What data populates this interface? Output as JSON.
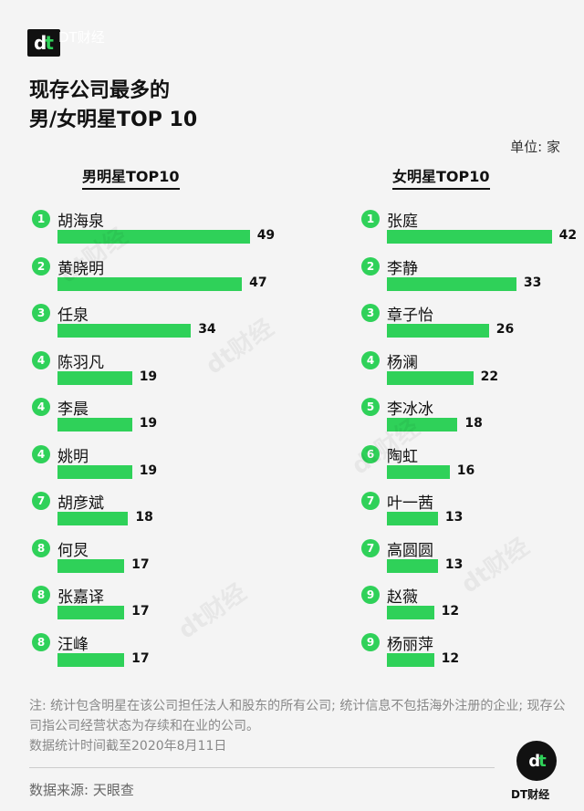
{
  "brand": {
    "mark": "dt",
    "name": "DT财经"
  },
  "title": [
    "现存公司最多的",
    "男/女明星TOP 10"
  ],
  "unit_label": "单位: 家",
  "chart_data": [
    {
      "type": "bar",
      "title": "男明星TOP10",
      "orientation": "horizontal",
      "max": 50,
      "ranks": [
        "1",
        "2",
        "3",
        "4",
        "4",
        "4",
        "7",
        "8",
        "8",
        "8"
      ],
      "categories": [
        "胡海泉",
        "黄晓明",
        "任泉",
        "陈羽凡",
        "李晨",
        "姚明",
        "胡彦斌",
        "何炅",
        "张嘉译",
        "汪峰"
      ],
      "values": [
        49,
        47,
        34,
        19,
        19,
        19,
        18,
        17,
        17,
        17
      ]
    },
    {
      "type": "bar",
      "title": "女明星TOP10",
      "orientation": "horizontal",
      "max": 50,
      "ranks": [
        "1",
        "2",
        "3",
        "4",
        "5",
        "6",
        "7",
        "7",
        "9",
        "9"
      ],
      "categories": [
        "张庭",
        "李静",
        "章子怡",
        "杨澜",
        "李冰冰",
        "陶虹",
        "叶一茜",
        "高圆圆",
        "赵薇",
        "杨丽萍"
      ],
      "values": [
        42,
        33,
        26,
        22,
        18,
        16,
        13,
        13,
        12,
        12
      ]
    }
  ],
  "colors": {
    "bar": "#2fd159",
    "text": "#111111"
  },
  "notes": [
    "注: 统计包含明星在该公司担任法人和股东的所有公司; 统计信息不包括海外注册的企业; 现存公司指公司经营状态为存续和在业的公司。",
    "数据统计时间截至2020年8月11日"
  ],
  "source": "数据来源: 天眼查"
}
